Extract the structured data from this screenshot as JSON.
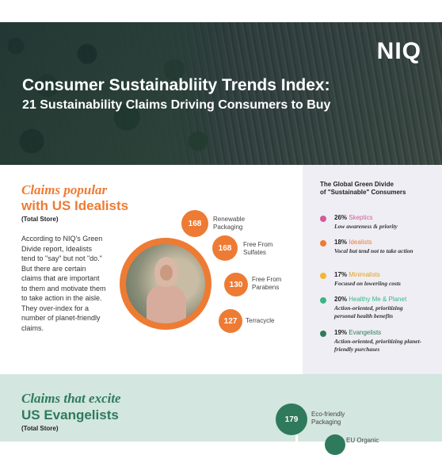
{
  "header": {
    "logo": "NIQ",
    "title_line1": "Consumer Sustainabliity Trends Index:",
    "title_line2": "21 Sustainability Claims Driving Consumers to Buy"
  },
  "idealists": {
    "heading_italic": "Claims popular",
    "heading_bold": "with US Idealists",
    "store": "(Total Store)",
    "paragraph": "According to NIQ's Green Divide report, Idealists tend to \"say\" but not \"do.\" But there are certain claims that are important to them and motivate them to take action in the aisle. They over-index for a number of planet-friendly claims.",
    "claims": [
      {
        "value": "168",
        "label": "Renewable Packaging"
      },
      {
        "value": "168",
        "label": "Free From Sulfates"
      },
      {
        "value": "130",
        "label": "Free From Parabens"
      },
      {
        "value": "127",
        "label": "Terracycle"
      }
    ]
  },
  "green_divide": {
    "title_line1": "The Global Green Divide",
    "title_line2": "of \"Sustainable\" Consumers",
    "segments": [
      {
        "pct": "26%",
        "name": "Skeptics",
        "color": "#d4589c",
        "desc": "Low awareness & priority"
      },
      {
        "pct": "18%",
        "name": "Idealists",
        "color": "#ee7b33",
        "desc": "Vocal but tend not to take action"
      },
      {
        "pct": "17%",
        "name": "Minimalists",
        "color": "#f2b631",
        "desc": "Focused on loweriing costs"
      },
      {
        "pct": "20%",
        "name": "Healthy Me & Planet",
        "color": "#3ab58a",
        "desc": "Action-oriented, prioritizing personal health benefits"
      },
      {
        "pct": "19%",
        "name": "Evangelists",
        "color": "#2f7a5c",
        "desc": "Action-oriented, prioritizing planet-friendly purchases"
      }
    ]
  },
  "evangelists": {
    "heading_italic": "Claims that excite",
    "heading_bold": "US Evangelists",
    "store": "(Total Store)",
    "claims": [
      {
        "value": "179",
        "label": "Eco-friendly Packaging"
      },
      {
        "value": "",
        "label": "EU Organic"
      }
    ]
  }
}
